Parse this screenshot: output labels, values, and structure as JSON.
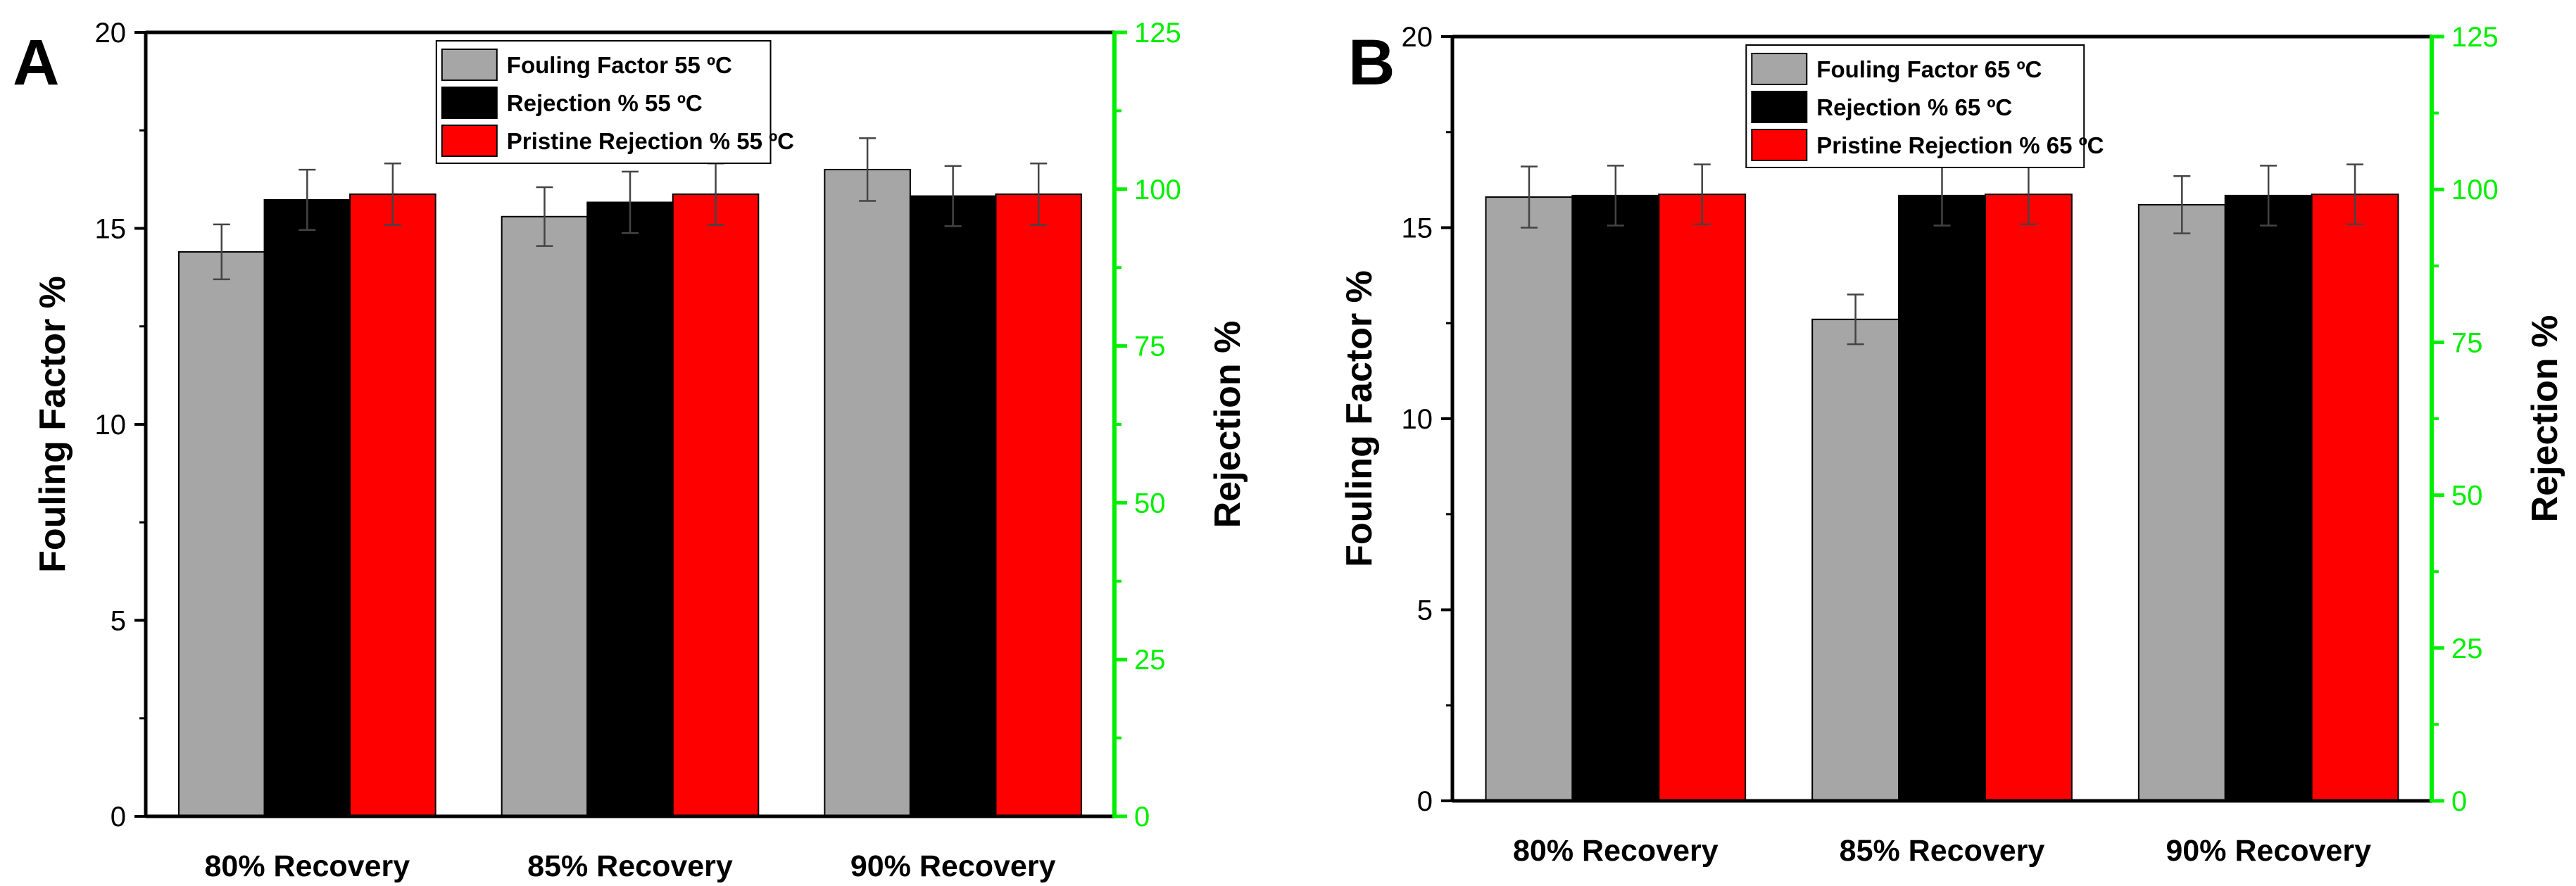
{
  "colors": {
    "fouling": "#a6a6a6",
    "rejection": "#000000",
    "pristine": "#ff0000",
    "right_axis": "#00ee00",
    "axis": "#000000"
  },
  "chart_data": [
    {
      "type": "bar",
      "panel_label": "A",
      "categories": [
        "80%  Recovery",
        "85%  Recovery",
        "90%  Recovery"
      ],
      "ylabel": "Fouling Factor %",
      "y2label": "Rejection  %",
      "ylim": [
        0,
        20
      ],
      "y2lim": [
        0,
        125
      ],
      "yticks": [
        "0",
        "5",
        "10",
        "15",
        "20"
      ],
      "y2ticks": [
        "0",
        "25",
        "50",
        "75",
        "100",
        "125"
      ],
      "series": [
        {
          "name": "Fouling Factor 55 ºC",
          "axis": "left",
          "values": [
            14.4,
            15.3,
            16.5
          ],
          "errors": [
            0.7,
            0.75,
            0.8
          ]
        },
        {
          "name": "Rejection  % 55 ºC",
          "axis": "right",
          "values": [
            98.3,
            97.9,
            98.9
          ],
          "errors": [
            4.8,
            4.9,
            4.8
          ]
        },
        {
          "name": "Pristine Rejection % 55 ºC",
          "axis": "right",
          "values": [
            99.2,
            99.2,
            99.2
          ],
          "errors": [
            4.9,
            4.9,
            4.9
          ]
        }
      ]
    },
    {
      "type": "bar",
      "panel_label": "B",
      "categories": [
        "80%  Recovery",
        "85%  Recovery",
        "90%  Recovery"
      ],
      "ylabel": "Fouling Factor %",
      "y2label": "Rejection  %",
      "ylim": [
        0,
        20
      ],
      "y2lim": [
        0,
        125
      ],
      "yticks": [
        "0",
        "5",
        "10",
        "15",
        "20"
      ],
      "y2ticks": [
        "0",
        "25",
        "50",
        "75",
        "100",
        "125"
      ],
      "series": [
        {
          "name": "Fouling Factor 65 ºC",
          "axis": "left",
          "values": [
            15.8,
            12.6,
            15.6
          ],
          "errors": [
            0.8,
            0.65,
            0.75
          ]
        },
        {
          "name": "Rejection  % 65 ºC",
          "axis": "right",
          "values": [
            99.0,
            99.0,
            99.0
          ],
          "errors": [
            4.9,
            4.9,
            4.9
          ]
        },
        {
          "name": "Pristine Rejection % 65 ºC",
          "axis": "right",
          "values": [
            99.2,
            99.2,
            99.2
          ],
          "errors": [
            4.9,
            4.9,
            4.9
          ]
        }
      ]
    }
  ]
}
